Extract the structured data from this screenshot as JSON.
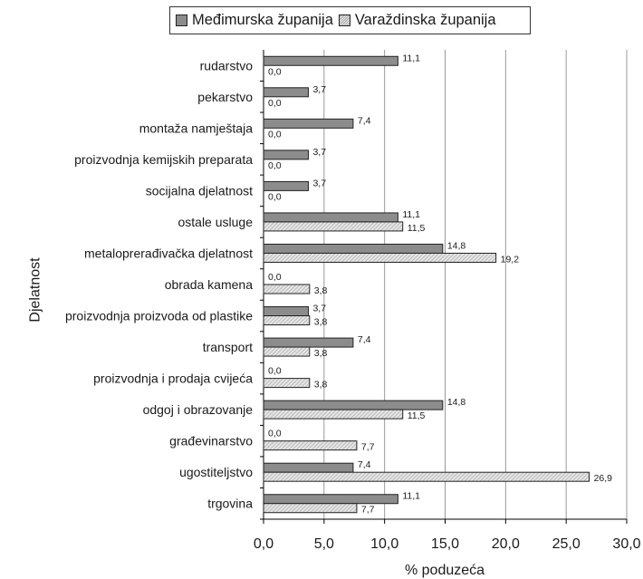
{
  "chart_data": {
    "type": "bar",
    "orientation": "horizontal",
    "ylabel": "Djelatnost",
    "xlabel": "% poduzeća",
    "xlim": [
      0,
      30
    ],
    "xticks": [
      "0,0",
      "5,0",
      "10,0",
      "15,0",
      "20,0",
      "25,0",
      "30,0"
    ],
    "grid": "vertical",
    "legend_position": "top",
    "categories": [
      "rudarstvo",
      "pekarstvo",
      "montaža namještaja",
      "proizvodnja kemijskih preparata",
      "socijalna djelatnost",
      "ostale usluge",
      "metaloprerađivačka djelatnost",
      "obrada kamena",
      "proizvodnja proizvoda od plastike",
      "transport",
      "proizvodnja i prodaja cvijeća",
      "odgoj i obrazovanje",
      "građevinarstvo",
      "ugostiteljstvo",
      "trgovina"
    ],
    "series": [
      {
        "name": "Međimurska županija",
        "values": [
          11.1,
          3.7,
          7.4,
          3.7,
          3.7,
          11.1,
          14.8,
          0.0,
          3.7,
          7.4,
          0.0,
          14.8,
          0.0,
          7.4,
          11.1
        ],
        "labels": [
          "11,1",
          "3,7",
          "7,4",
          "3,7",
          "3,7",
          "11,1",
          "14,8",
          "0,0",
          "3,7",
          "7,4",
          "0,0",
          "14,8",
          "0,0",
          "7,4",
          "11,1"
        ]
      },
      {
        "name": "Varaždinska županija",
        "values": [
          0.0,
          0.0,
          0.0,
          0.0,
          0.0,
          11.5,
          19.2,
          3.8,
          3.8,
          3.8,
          3.8,
          11.5,
          7.7,
          26.9,
          7.7
        ],
        "labels": [
          "0,0",
          "0,0",
          "0,0",
          "0,0",
          "0,0",
          "11,5",
          "19,2",
          "3,8",
          "3,8",
          "3,8",
          "3,8",
          "11,5",
          "7,7",
          "26,9",
          "7,7"
        ]
      }
    ],
    "colors": {
      "series1": "#8c8c8c",
      "series2_light": "#e6e6e6",
      "series2_dark": "#a6a6a6",
      "grid": "#999999",
      "axis": "#000000"
    }
  }
}
